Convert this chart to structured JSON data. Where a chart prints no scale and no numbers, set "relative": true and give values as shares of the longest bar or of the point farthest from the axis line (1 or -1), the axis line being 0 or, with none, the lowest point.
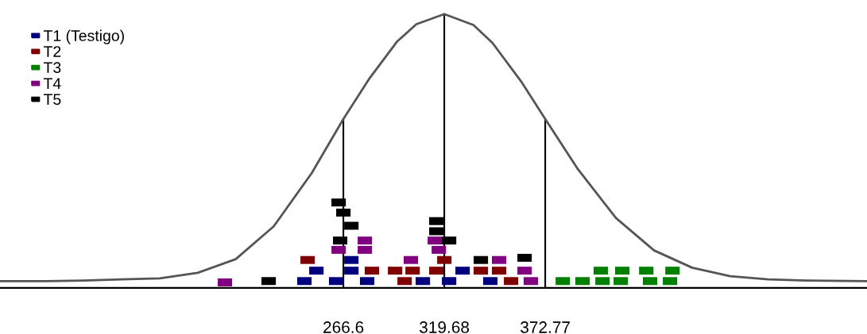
{
  "chart_data": {
    "type": "scatter",
    "relative": true,
    "xlim": [
      86,
      542
    ],
    "xticks": [
      266.6,
      319.68,
      372.77
    ],
    "tick_labels": "x",
    "grid": false,
    "legend": "top left",
    "marker": "square",
    "series": [
      {
        "type": "line",
        "color": "#555555",
        "marker": "none",
        "x": [
          86,
          110,
          130,
          150,
          170,
          190,
          210,
          230,
          250,
          266.6,
          280,
          295,
          305,
          319.68,
          335,
          345,
          360,
          372.77,
          390,
          410,
          430,
          450,
          470,
          490,
          510,
          542
        ],
        "values": [
          0.025,
          0.025,
          0.027,
          0.031,
          0.035,
          0.055,
          0.105,
          0.225,
          0.42,
          0.617,
          0.762,
          0.901,
          0.963,
          1,
          0.96,
          0.895,
          0.755,
          0.617,
          0.433,
          0.255,
          0.137,
          0.074,
          0.043,
          0.031,
          0.027,
          0.025
        ]
      },
      {
        "name": "T1 (Testigo)",
        "color": "#00007f",
        "x": [
          246.1,
          262.8,
          252.4,
          270.8,
          270.8,
          279.1,
          308.4,
          322.2,
          329.3,
          343.9
        ],
        "values": [
          0.025,
          0.025,
          0.063,
          0.063,
          0.102,
          0.025,
          0.025,
          0.025,
          0.063,
          0.025
        ]
      },
      {
        "name": "T2",
        "color": "#7f0000",
        "x": [
          247.8,
          281.6,
          293.8,
          298.8,
          303.0,
          315.5,
          319.7,
          338.9,
          348.5,
          354.8
        ],
        "values": [
          0.102,
          0.063,
          0.063,
          0.025,
          0.063,
          0.063,
          0.102,
          0.063,
          0.063,
          0.025
        ]
      },
      {
        "name": "T3",
        "color": "#008000",
        "x": [
          382.0,
          392.4,
          402.9,
          412.5,
          427.9,
          438.4,
          402.0,
          413.3,
          425.9,
          439.7
        ],
        "values": [
          0.025,
          0.025,
          0.025,
          0.025,
          0.025,
          0.025,
          0.063,
          0.063,
          0.063,
          0.063
        ]
      },
      {
        "name": "T4",
        "color": "#800080",
        "x": [
          204.3,
          264.1,
          277.9,
          277.9,
          302.1,
          314.7,
          316.8,
          348.5,
          365.2,
          361.9
        ],
        "values": [
          0.02,
          0.139,
          0.173,
          0.139,
          0.102,
          0.173,
          0.139,
          0.102,
          0.025,
          0.063
        ]
      },
      {
        "name": "T5",
        "color": "#000000",
        "x": [
          227.3,
          264.9,
          270.8,
          266.6,
          264.1,
          315.5,
          315.5,
          322.2,
          338.9,
          361.9
        ],
        "values": [
          0.025,
          0.173,
          0.227,
          0.275,
          0.312,
          0.244,
          0.207,
          0.173,
          0.102,
          0.11
        ]
      }
    ],
    "ref_lines": [
      {
        "axis": "x",
        "value": 266.6,
        "color": "#000000"
      },
      {
        "axis": "x",
        "value": 319.68,
        "color": "#000000"
      },
      {
        "axis": "x",
        "value": 372.77,
        "color": "#000000"
      }
    ]
  }
}
